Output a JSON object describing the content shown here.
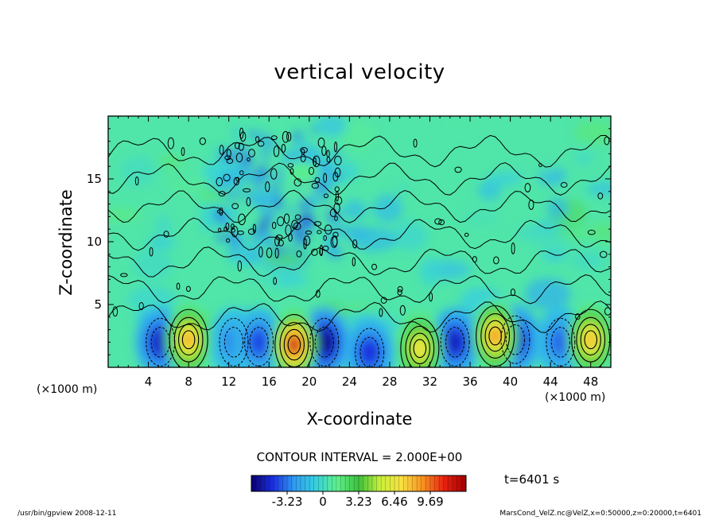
{
  "chart_data": {
    "type": "heatmap",
    "title": "vertical velocity",
    "xlabel": "X-coordinate",
    "ylabel": "Z-coordinate",
    "x_unit": "(×1000 m)",
    "y_unit": "(×1000 m)",
    "xlim": [
      0,
      50
    ],
    "ylim": [
      0,
      20
    ],
    "x_ticks": [
      4,
      8,
      12,
      16,
      20,
      24,
      28,
      32,
      36,
      40,
      44,
      48
    ],
    "y_ticks": [
      5,
      10,
      15
    ],
    "contour_interval_text": "CONTOUR INTERVAL = 2.000E+00",
    "time_text": "t=6401 s",
    "colorbar": {
      "range": [
        -6.46,
        12.92
      ],
      "tick_labels": [
        "-3.23",
        "0",
        "3.23",
        "6.46",
        "9.69"
      ],
      "tick_values": [
        -3.23,
        0,
        3.23,
        6.46,
        9.69
      ]
    },
    "updrafts": [
      {
        "x": 8.0,
        "z": 2.2,
        "peak": 8.5
      },
      {
        "x": 18.5,
        "z": 1.8,
        "peak": 12.0
      },
      {
        "x": 31.0,
        "z": 1.5,
        "peak": 7.0
      },
      {
        "x": 38.5,
        "z": 2.5,
        "peak": 9.0
      },
      {
        "x": 48.0,
        "z": 2.2,
        "peak": 8.0
      }
    ],
    "downdrafts": [
      {
        "x": 5.2,
        "z": 2.0,
        "peak": -5.0
      },
      {
        "x": 12.5,
        "z": 2.0,
        "peak": -3.0
      },
      {
        "x": 15.0,
        "z": 2.0,
        "peak": -4.0
      },
      {
        "x": 21.5,
        "z": 2.0,
        "peak": -6.0
      },
      {
        "x": 26.0,
        "z": 1.2,
        "peak": -4.5
      },
      {
        "x": 34.5,
        "z": 2.0,
        "peak": -5.0
      },
      {
        "x": 40.5,
        "z": 2.2,
        "peak": -5.0
      },
      {
        "x": 45.0,
        "z": 2.0,
        "peak": -3.5
      }
    ]
  },
  "footer": {
    "left": "/usr/bin/gpview  2008-12-11",
    "right": "MarsCond_VelZ.nc@VelZ,x=0:50000,z=0:20000,t=6401"
  },
  "colors": {
    "colormap": [
      "#0b006e",
      "#1a2fe0",
      "#2f9cf0",
      "#35d0e0",
      "#5ff08a",
      "#3cc03c",
      "#c8f03c",
      "#f8e040",
      "#f89020",
      "#e82010",
      "#a00000"
    ]
  }
}
